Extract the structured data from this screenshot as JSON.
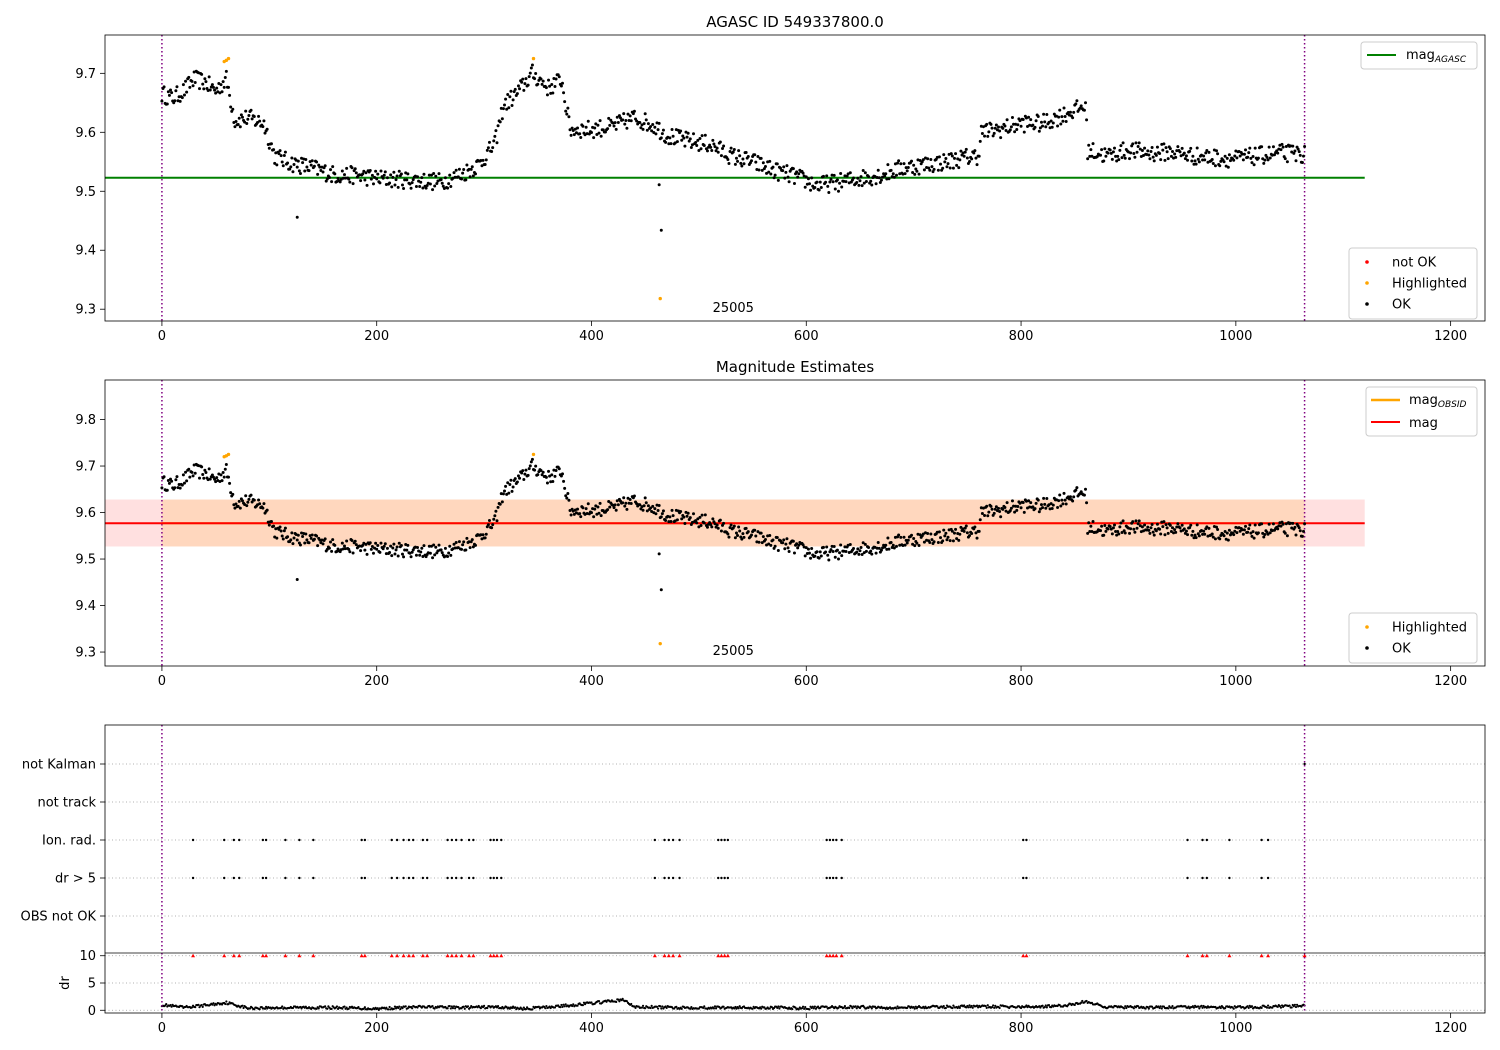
{
  "chart_data": [
    {
      "type": "scatter",
      "title": "AGASC ID 549337800.0",
      "xlim": [
        -53,
        1232
      ],
      "ylim": [
        9.28,
        9.765
      ],
      "xticks": [
        0,
        200,
        400,
        600,
        800,
        1000,
        1200
      ],
      "yticks": [
        9.3,
        9.4,
        9.5,
        9.6,
        9.7
      ],
      "vlines": [
        0,
        1064
      ],
      "hline": {
        "name": "mag",
        "subscript": "AGASC",
        "value": 9.523,
        "xmax": 1120,
        "color": "#008000"
      },
      "annotation": {
        "text": "25005",
        "x": 532,
        "y": 9.303
      },
      "legend_lines": [
        "mag_AGASC"
      ],
      "legend_points": [
        {
          "name": "not OK",
          "color": "#ff0000"
        },
        {
          "name": "Highlighted",
          "color": "#ffa500"
        },
        {
          "name": "OK",
          "color": "#000000"
        }
      ],
      "highlighted_points": [
        [
          58,
          9.72
        ],
        [
          60,
          9.722
        ],
        [
          62,
          9.725
        ],
        [
          346,
          9.725
        ],
        [
          464,
          9.318
        ]
      ],
      "outlier_points": [
        [
          126,
          9.456
        ],
        [
          463,
          9.511
        ],
        [
          465,
          9.434
        ]
      ],
      "ok_trend": [
        [
          0,
          9.665
        ],
        [
          10,
          9.658
        ],
        [
          20,
          9.67
        ],
        [
          30,
          9.69
        ],
        [
          40,
          9.685
        ],
        [
          50,
          9.67
        ],
        [
          60,
          9.69
        ],
        [
          68,
          9.62
        ],
        [
          80,
          9.625
        ],
        [
          95,
          9.615
        ],
        [
          105,
          9.56
        ],
        [
          120,
          9.548
        ],
        [
          140,
          9.54
        ],
        [
          160,
          9.528
        ],
        [
          180,
          9.527
        ],
        [
          200,
          9.522
        ],
        [
          220,
          9.52
        ],
        [
          240,
          9.518
        ],
        [
          260,
          9.516
        ],
        [
          280,
          9.53
        ],
        [
          295,
          9.545
        ],
        [
          310,
          9.58
        ],
        [
          318,
          9.645
        ],
        [
          330,
          9.665
        ],
        [
          345,
          9.7
        ],
        [
          360,
          9.675
        ],
        [
          372,
          9.69
        ],
        [
          380,
          9.605
        ],
        [
          400,
          9.605
        ],
        [
          420,
          9.61
        ],
        [
          440,
          9.625
        ],
        [
          460,
          9.61
        ],
        [
          470,
          9.595
        ],
        [
          490,
          9.585
        ],
        [
          510,
          9.58
        ],
        [
          530,
          9.56
        ],
        [
          550,
          9.55
        ],
        [
          570,
          9.535
        ],
        [
          590,
          9.525
        ],
        [
          610,
          9.51
        ],
        [
          630,
          9.515
        ],
        [
          650,
          9.522
        ],
        [
          670,
          9.528
        ],
        [
          690,
          9.54
        ],
        [
          710,
          9.545
        ],
        [
          730,
          9.55
        ],
        [
          750,
          9.558
        ],
        [
          760,
          9.56
        ],
        [
          763,
          9.6
        ],
        [
          780,
          9.605
        ],
        [
          800,
          9.615
        ],
        [
          820,
          9.615
        ],
        [
          840,
          9.63
        ],
        [
          860,
          9.645
        ],
        [
          862,
          9.57
        ],
        [
          880,
          9.56
        ],
        [
          900,
          9.57
        ],
        [
          920,
          9.565
        ],
        [
          940,
          9.567
        ],
        [
          960,
          9.56
        ],
        [
          980,
          9.557
        ],
        [
          1000,
          9.555
        ],
        [
          1020,
          9.56
        ],
        [
          1040,
          9.565
        ],
        [
          1064,
          9.563
        ]
      ]
    },
    {
      "type": "scatter",
      "title": "Magnitude Estimates",
      "xlim": [
        -53,
        1232
      ],
      "ylim": [
        9.27,
        9.885
      ],
      "xticks": [
        0,
        200,
        400,
        600,
        800,
        1000,
        1200
      ],
      "yticks": [
        9.3,
        9.4,
        9.5,
        9.6,
        9.7,
        9.8
      ],
      "vlines": [
        0,
        1064
      ],
      "annotation": {
        "text": "25005",
        "x": 532,
        "y": 9.303
      },
      "mag": {
        "name": "mag",
        "value": 9.577,
        "band": [
          9.527,
          9.628
        ],
        "xmax": 1120,
        "color": "#ff0000"
      },
      "mag_obsid_segments": [
        {
          "x": [
            0,
            93
          ],
          "value": 9.577,
          "band": [
            9.527,
            9.628
          ]
        },
        {
          "x": [
            93,
            372
          ],
          "value": 9.577,
          "band": [
            9.527,
            9.628
          ]
        },
        {
          "x": [
            372,
            762
          ],
          "value": 9.577,
          "band": [
            9.527,
            9.628
          ]
        },
        {
          "x": [
            762,
            860
          ],
          "value": 9.577,
          "band": [
            9.527,
            9.628
          ]
        },
        {
          "x": [
            860,
            1064
          ],
          "value": 9.577,
          "band": [
            9.527,
            9.628
          ]
        }
      ],
      "legend_lines": [
        "mag_OBSID",
        "mag"
      ],
      "legend_points": [
        {
          "name": "Highlighted",
          "color": "#ffa500"
        },
        {
          "name": "OK",
          "color": "#000000"
        }
      ]
    },
    {
      "type": "scatter",
      "title": "",
      "xlim": [
        -53,
        1232
      ],
      "xticks": [
        0,
        200,
        400,
        600,
        800,
        1000,
        1200
      ],
      "vlines": [
        0,
        1064
      ],
      "flag_labels": [
        "not Kalman",
        "not track",
        "Ion. rad.",
        "dr > 5",
        "OBS not OK"
      ],
      "flag_x": [
        29,
        58,
        67,
        72,
        94,
        97,
        115,
        128,
        141,
        186,
        189,
        214,
        219,
        225,
        230,
        234,
        243,
        247,
        266,
        270,
        274,
        279,
        286,
        290,
        306,
        309,
        312,
        316,
        459,
        468,
        472,
        476,
        482,
        518,
        521,
        524,
        527,
        619,
        622,
        625,
        628,
        633,
        802,
        805,
        955,
        969,
        973,
        994,
        1024,
        1030
      ],
      "flag_rows": [
        "Ion. rad.",
        "dr > 5"
      ],
      "not_kalman_x": [
        1064
      ],
      "dr": {
        "ylabel": "dr",
        "ylim": [
          -0.5,
          10.5
        ],
        "yticks": [
          0,
          5,
          10
        ],
        "threshold": 10,
        "spike_x": [
          29,
          58,
          67,
          72,
          94,
          97,
          115,
          128,
          141,
          186,
          189,
          214,
          219,
          225,
          230,
          234,
          243,
          247,
          266,
          270,
          274,
          279,
          286,
          290,
          306,
          309,
          312,
          316,
          459,
          468,
          472,
          476,
          482,
          518,
          521,
          524,
          527,
          619,
          622,
          625,
          628,
          633,
          802,
          805,
          955,
          969,
          973,
          994,
          1024,
          1030,
          1064
        ],
        "trend": [
          [
            0,
            1.0
          ],
          [
            20,
            0.5
          ],
          [
            40,
            0.9
          ],
          [
            60,
            1.4
          ],
          [
            80,
            0.4
          ],
          [
            120,
            0.5
          ],
          [
            160,
            0.5
          ],
          [
            200,
            0.3
          ],
          [
            240,
            0.6
          ],
          [
            280,
            0.5
          ],
          [
            310,
            0.6
          ],
          [
            340,
            0.3
          ],
          [
            380,
            0.9
          ],
          [
            400,
            1.3
          ],
          [
            430,
            1.9
          ],
          [
            440,
            0.6
          ],
          [
            480,
            0.5
          ],
          [
            520,
            0.5
          ],
          [
            560,
            0.5
          ],
          [
            600,
            0.4
          ],
          [
            640,
            0.6
          ],
          [
            680,
            0.5
          ],
          [
            720,
            0.6
          ],
          [
            760,
            0.7
          ],
          [
            800,
            0.6
          ],
          [
            840,
            0.8
          ],
          [
            860,
            1.6
          ],
          [
            880,
            0.6
          ],
          [
            920,
            0.5
          ],
          [
            960,
            0.6
          ],
          [
            1000,
            0.5
          ],
          [
            1040,
            0.7
          ],
          [
            1064,
            0.8
          ]
        ]
      }
    }
  ]
}
